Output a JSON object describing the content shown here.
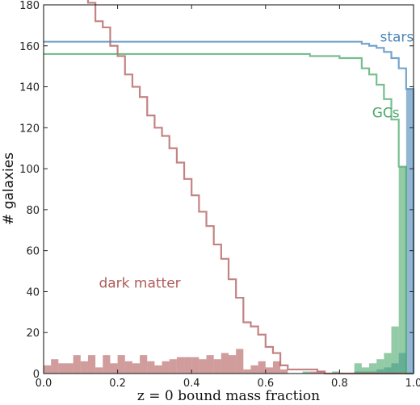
{
  "chart_data": {
    "type": "histogram",
    "xlabel": "z = 0 bound mass fraction",
    "ylabel": "# galaxies",
    "xlim": [
      0.0,
      1.0
    ],
    "ylim": [
      0,
      180
    ],
    "xticks": [
      "0.0",
      "0.2",
      "0.4",
      "0.6",
      "0.8",
      "1.0"
    ],
    "yticks": [
      "0",
      "20",
      "40",
      "60",
      "80",
      "100",
      "120",
      "140",
      "160",
      "180"
    ],
    "grid": false,
    "bin_width": 0.02,
    "colors": {
      "dark_matter": "#b05a5a",
      "stars": "#4a86b8",
      "gcs": "#4aa86a"
    },
    "annotations": [
      {
        "text": "stars",
        "series": "stars",
        "x": 0.955,
        "y": 162
      },
      {
        "text": "GCs",
        "series": "gcs",
        "x": 0.925,
        "y": 125
      },
      {
        "text": "dark matter",
        "series": "dark_matter",
        "x": 0.26,
        "y": 42
      }
    ],
    "series": [
      {
        "key": "dark_matter",
        "hist": [
          4,
          7,
          5,
          5,
          9,
          6,
          9,
          3,
          9,
          5,
          9,
          6,
          5,
          9,
          6,
          4,
          6,
          7,
          8,
          8,
          8,
          7,
          9,
          7,
          10,
          9,
          12,
          2,
          4,
          6,
          3,
          6,
          2,
          0,
          0,
          0,
          1,
          1,
          0,
          0,
          0,
          0,
          0,
          0,
          0,
          0,
          0,
          0,
          0,
          0
        ]
      },
      {
        "key": "stars",
        "hist": [
          0,
          0,
          0,
          0,
          0,
          0,
          0,
          0,
          0,
          0,
          0,
          0,
          0,
          0,
          0,
          0,
          0,
          0,
          0,
          0,
          0,
          0,
          0,
          0,
          0,
          0,
          0,
          0,
          0,
          0,
          0,
          0,
          0,
          0,
          0,
          0,
          0,
          0,
          0,
          0,
          0,
          0,
          1,
          1,
          1,
          2,
          3,
          5,
          10,
          139
        ]
      },
      {
        "key": "gcs",
        "hist": [
          0,
          0,
          0,
          0,
          0,
          0,
          0,
          0,
          0,
          0,
          0,
          0,
          0,
          0,
          0,
          0,
          0,
          0,
          0,
          0,
          0,
          0,
          0,
          0,
          0,
          0,
          0,
          0,
          0,
          0,
          0,
          0,
          0,
          0,
          0,
          1,
          0,
          0,
          0,
          1,
          0,
          0,
          5,
          3,
          5,
          7,
          10,
          23,
          101,
          0
        ]
      }
    ]
  }
}
